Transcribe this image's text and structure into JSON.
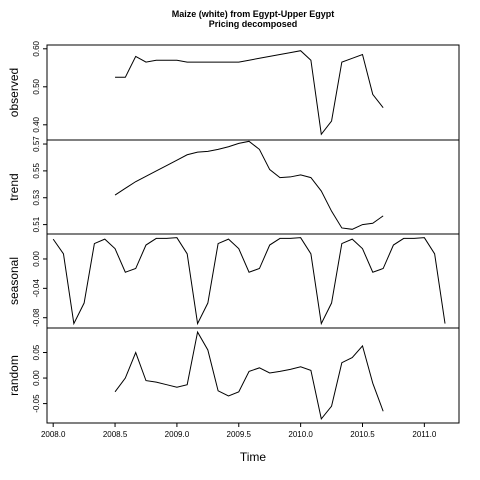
{
  "chart_data": {
    "type": "line",
    "title": "Maize (white) from Egypt-Upper Egypt",
    "subtitle": "Pricing decomposed",
    "xlabel": "Time",
    "xlim": [
      2007.95,
      2011.28
    ],
    "x_ticks": [
      {
        "value": 2008.0,
        "label": "2008.0"
      },
      {
        "value": 2008.5,
        "label": "2008.5"
      },
      {
        "value": 2009.0,
        "label": "2009.0"
      },
      {
        "value": 2009.5,
        "label": "2009.5"
      },
      {
        "value": 2010.0,
        "label": "2010.0"
      },
      {
        "value": 2010.5,
        "label": "2010.5"
      },
      {
        "value": 2011.0,
        "label": "2011.0"
      }
    ],
    "panels": [
      {
        "name": "observed",
        "ylim": [
          0.36,
          0.61
        ],
        "y_ticks": [
          {
            "value": 0.4,
            "label": "0.40"
          },
          {
            "value": 0.5,
            "label": "0.50"
          },
          {
            "value": 0.6,
            "label": "0.60"
          }
        ],
        "x": [
          2008.5,
          2008.583,
          2008.667,
          2008.75,
          2008.833,
          2008.917,
          2009.0,
          2009.083,
          2009.167,
          2009.25,
          2009.333,
          2009.417,
          2009.5,
          2009.583,
          2009.667,
          2009.75,
          2009.833,
          2009.917,
          2010.0,
          2010.083,
          2010.167,
          2010.25,
          2010.333,
          2010.417,
          2010.5,
          2010.583,
          2010.667
        ],
        "values": [
          0.525,
          0.525,
          0.58,
          0.565,
          0.57,
          0.57,
          0.57,
          0.565,
          0.565,
          0.565,
          0.565,
          0.565,
          0.565,
          0.57,
          0.575,
          0.58,
          0.585,
          0.59,
          0.595,
          0.57,
          0.375,
          0.41,
          0.565,
          0.575,
          0.585,
          0.48,
          0.445
        ]
      },
      {
        "name": "trend",
        "ylim": [
          0.503,
          0.573
        ],
        "y_ticks": [
          {
            "value": 0.51,
            "label": "0.51"
          },
          {
            "value": 0.53,
            "label": "0.53"
          },
          {
            "value": 0.55,
            "label": "0.55"
          },
          {
            "value": 0.57,
            "label": "0.57"
          }
        ],
        "x": [
          2008.5,
          2008.583,
          2008.667,
          2008.75,
          2008.833,
          2008.917,
          2009.0,
          2009.083,
          2009.167,
          2009.25,
          2009.333,
          2009.417,
          2009.5,
          2009.583,
          2009.667,
          2009.75,
          2009.833,
          2009.917,
          2010.0,
          2010.083,
          2010.167,
          2010.25,
          2010.333,
          2010.417,
          2010.5,
          2010.583,
          2010.667
        ],
        "values": [
          0.532,
          0.537,
          0.542,
          0.546,
          0.55,
          0.554,
          0.558,
          0.562,
          0.564,
          0.5645,
          0.566,
          0.568,
          0.5705,
          0.572,
          0.566,
          0.551,
          0.545,
          0.5455,
          0.547,
          0.545,
          0.535,
          0.52,
          0.5075,
          0.5065,
          0.51,
          0.511,
          0.5165
        ]
      },
      {
        "name": "seasonal",
        "ylim": [
          -0.094,
          0.034
        ],
        "y_ticks": [
          {
            "value": -0.08,
            "label": "-0.08"
          },
          {
            "value": -0.04,
            "label": "-0.04"
          },
          {
            "value": 0.0,
            "label": "0.00"
          }
        ],
        "x": [
          2008.0,
          2008.083,
          2008.167,
          2008.25,
          2008.333,
          2008.417,
          2008.5,
          2008.583,
          2008.667,
          2008.75,
          2008.833,
          2008.917,
          2009.0,
          2009.083,
          2009.167,
          2009.25,
          2009.333,
          2009.417,
          2009.5,
          2009.583,
          2009.667,
          2009.75,
          2009.833,
          2009.917,
          2010.0,
          2010.083,
          2010.167,
          2010.25,
          2010.333,
          2010.417,
          2010.5,
          2010.583,
          2010.667,
          2010.75,
          2010.833,
          2010.917,
          2011.0,
          2011.083,
          2011.167
        ],
        "values": [
          0.027,
          0.007,
          -0.088,
          -0.06,
          0.021,
          0.027,
          0.014,
          -0.018,
          -0.013,
          0.019,
          0.028,
          0.028,
          0.029,
          0.007,
          -0.088,
          -0.06,
          0.021,
          0.027,
          0.014,
          -0.018,
          -0.013,
          0.019,
          0.028,
          0.028,
          0.029,
          0.007,
          -0.088,
          -0.06,
          0.021,
          0.027,
          0.014,
          -0.018,
          -0.013,
          0.019,
          0.028,
          0.028,
          0.029,
          0.007,
          -0.088
        ]
      },
      {
        "name": "random",
        "ylim": [
          -0.088,
          0.098
        ],
        "y_ticks": [
          {
            "value": -0.05,
            "label": "-0.05"
          },
          {
            "value": 0.0,
            "label": "0.00"
          },
          {
            "value": 0.05,
            "label": "0.05"
          }
        ],
        "x": [
          2008.5,
          2008.583,
          2008.667,
          2008.75,
          2008.833,
          2008.917,
          2009.0,
          2009.083,
          2009.167,
          2009.25,
          2009.333,
          2009.417,
          2009.5,
          2009.583,
          2009.667,
          2009.75,
          2009.833,
          2009.917,
          2010.0,
          2010.083,
          2010.167,
          2010.25,
          2010.333,
          2010.417,
          2010.5,
          2010.583,
          2010.667
        ],
        "values": [
          -0.027,
          0.0,
          0.05,
          -0.005,
          -0.008,
          -0.013,
          -0.018,
          -0.013,
          0.09,
          0.055,
          -0.025,
          -0.035,
          -0.027,
          0.013,
          0.02,
          0.01,
          0.013,
          0.017,
          0.022,
          0.015,
          -0.08,
          -0.055,
          0.03,
          0.04,
          0.063,
          -0.01,
          -0.065
        ]
      }
    ]
  }
}
